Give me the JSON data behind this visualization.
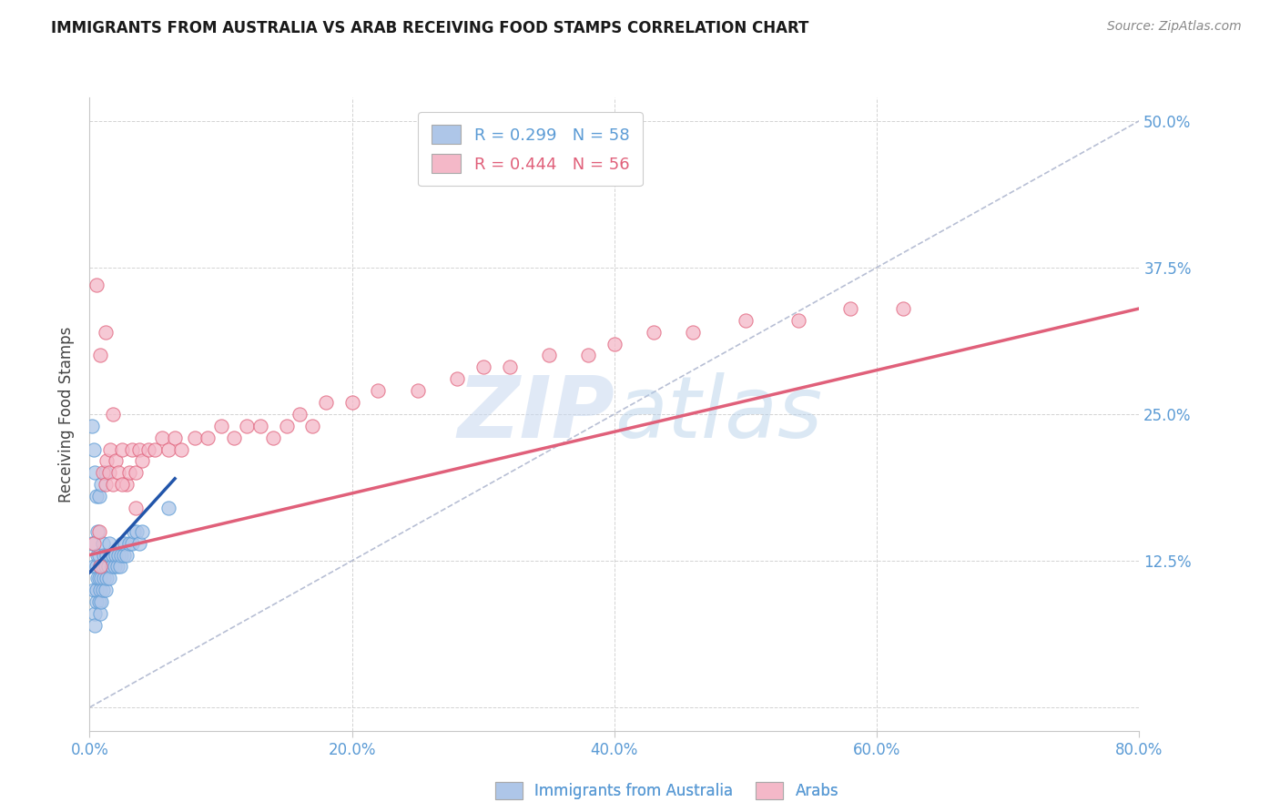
{
  "title": "IMMIGRANTS FROM AUSTRALIA VS ARAB RECEIVING FOOD STAMPS CORRELATION CHART",
  "source": "Source: ZipAtlas.com",
  "ylabel": "Receiving Food Stamps",
  "xlim": [
    0.0,
    0.8
  ],
  "ylim": [
    -0.02,
    0.52
  ],
  "xticks": [
    0.0,
    0.2,
    0.4,
    0.6,
    0.8
  ],
  "yticks": [
    0.0,
    0.125,
    0.25,
    0.375,
    0.5
  ],
  "xticklabels": [
    "0.0%",
    "20.0%",
    "40.0%",
    "60.0%",
    "80.0%"
  ],
  "yticklabels": [
    "",
    "12.5%",
    "25.0%",
    "37.5%",
    "50.0%"
  ],
  "legend_entries": [
    {
      "label": "R = 0.299   N = 58",
      "color": "#aec6e8"
    },
    {
      "label": "R = 0.444   N = 56",
      "color": "#f4b8c8"
    }
  ],
  "legend_bottom": [
    "Immigrants from Australia",
    "Arabs"
  ],
  "watermark_zip": "ZIP",
  "watermark_atlas": "atlas",
  "background_color": "#ffffff",
  "grid_color": "#c8c8c8",
  "title_color": "#1a1a1a",
  "tick_label_color": "#5b9bd5",
  "blue_dot_color": "#aec6e8",
  "pink_dot_color": "#f4b8c8",
  "blue_edge_color": "#5b9bd5",
  "pink_edge_color": "#e0607a",
  "blue_line_color": "#2255aa",
  "pink_line_color": "#e0607a",
  "ref_line_color": "#b0b8d0",
  "dot_size": 120,
  "dot_alpha": 0.75,
  "blue_scatter_x": [
    0.002,
    0.003,
    0.003,
    0.004,
    0.004,
    0.005,
    0.005,
    0.005,
    0.006,
    0.006,
    0.006,
    0.007,
    0.007,
    0.007,
    0.008,
    0.008,
    0.008,
    0.009,
    0.009,
    0.01,
    0.01,
    0.01,
    0.011,
    0.011,
    0.012,
    0.012,
    0.013,
    0.013,
    0.014,
    0.015,
    0.015,
    0.016,
    0.017,
    0.018,
    0.019,
    0.02,
    0.021,
    0.022,
    0.023,
    0.024,
    0.025,
    0.026,
    0.027,
    0.028,
    0.03,
    0.032,
    0.034,
    0.036,
    0.038,
    0.04,
    0.002,
    0.003,
    0.004,
    0.005,
    0.007,
    0.009,
    0.012,
    0.06
  ],
  "blue_scatter_y": [
    0.14,
    0.12,
    0.1,
    0.08,
    0.07,
    0.09,
    0.1,
    0.12,
    0.11,
    0.13,
    0.15,
    0.13,
    0.11,
    0.09,
    0.12,
    0.1,
    0.08,
    0.11,
    0.09,
    0.14,
    0.12,
    0.1,
    0.13,
    0.11,
    0.12,
    0.1,
    0.11,
    0.13,
    0.12,
    0.14,
    0.11,
    0.13,
    0.12,
    0.13,
    0.12,
    0.13,
    0.12,
    0.13,
    0.12,
    0.13,
    0.14,
    0.13,
    0.14,
    0.13,
    0.14,
    0.14,
    0.15,
    0.15,
    0.14,
    0.15,
    0.24,
    0.22,
    0.2,
    0.18,
    0.18,
    0.19,
    0.2,
    0.17
  ],
  "pink_scatter_x": [
    0.003,
    0.005,
    0.007,
    0.008,
    0.01,
    0.012,
    0.013,
    0.015,
    0.016,
    0.018,
    0.02,
    0.022,
    0.025,
    0.028,
    0.03,
    0.032,
    0.035,
    0.038,
    0.04,
    0.045,
    0.05,
    0.055,
    0.06,
    0.065,
    0.07,
    0.08,
    0.09,
    0.1,
    0.11,
    0.12,
    0.13,
    0.14,
    0.15,
    0.16,
    0.17,
    0.18,
    0.2,
    0.22,
    0.25,
    0.28,
    0.3,
    0.32,
    0.35,
    0.38,
    0.4,
    0.43,
    0.46,
    0.5,
    0.54,
    0.58,
    0.62,
    0.008,
    0.012,
    0.018,
    0.025,
    0.035
  ],
  "pink_scatter_y": [
    0.14,
    0.36,
    0.15,
    0.12,
    0.2,
    0.19,
    0.21,
    0.2,
    0.22,
    0.19,
    0.21,
    0.2,
    0.22,
    0.19,
    0.2,
    0.22,
    0.2,
    0.22,
    0.21,
    0.22,
    0.22,
    0.23,
    0.22,
    0.23,
    0.22,
    0.23,
    0.23,
    0.24,
    0.23,
    0.24,
    0.24,
    0.23,
    0.24,
    0.25,
    0.24,
    0.26,
    0.26,
    0.27,
    0.27,
    0.28,
    0.29,
    0.29,
    0.3,
    0.3,
    0.31,
    0.32,
    0.32,
    0.33,
    0.33,
    0.34,
    0.34,
    0.3,
    0.32,
    0.25,
    0.19,
    0.17
  ],
  "blue_line_x": [
    0.0,
    0.065
  ],
  "blue_line_y": [
    0.115,
    0.195
  ],
  "pink_line_x": [
    0.0,
    0.8
  ],
  "pink_line_y": [
    0.13,
    0.34
  ],
  "ref_line_x": [
    0.0,
    0.8
  ],
  "ref_line_y": [
    0.0,
    0.5
  ]
}
